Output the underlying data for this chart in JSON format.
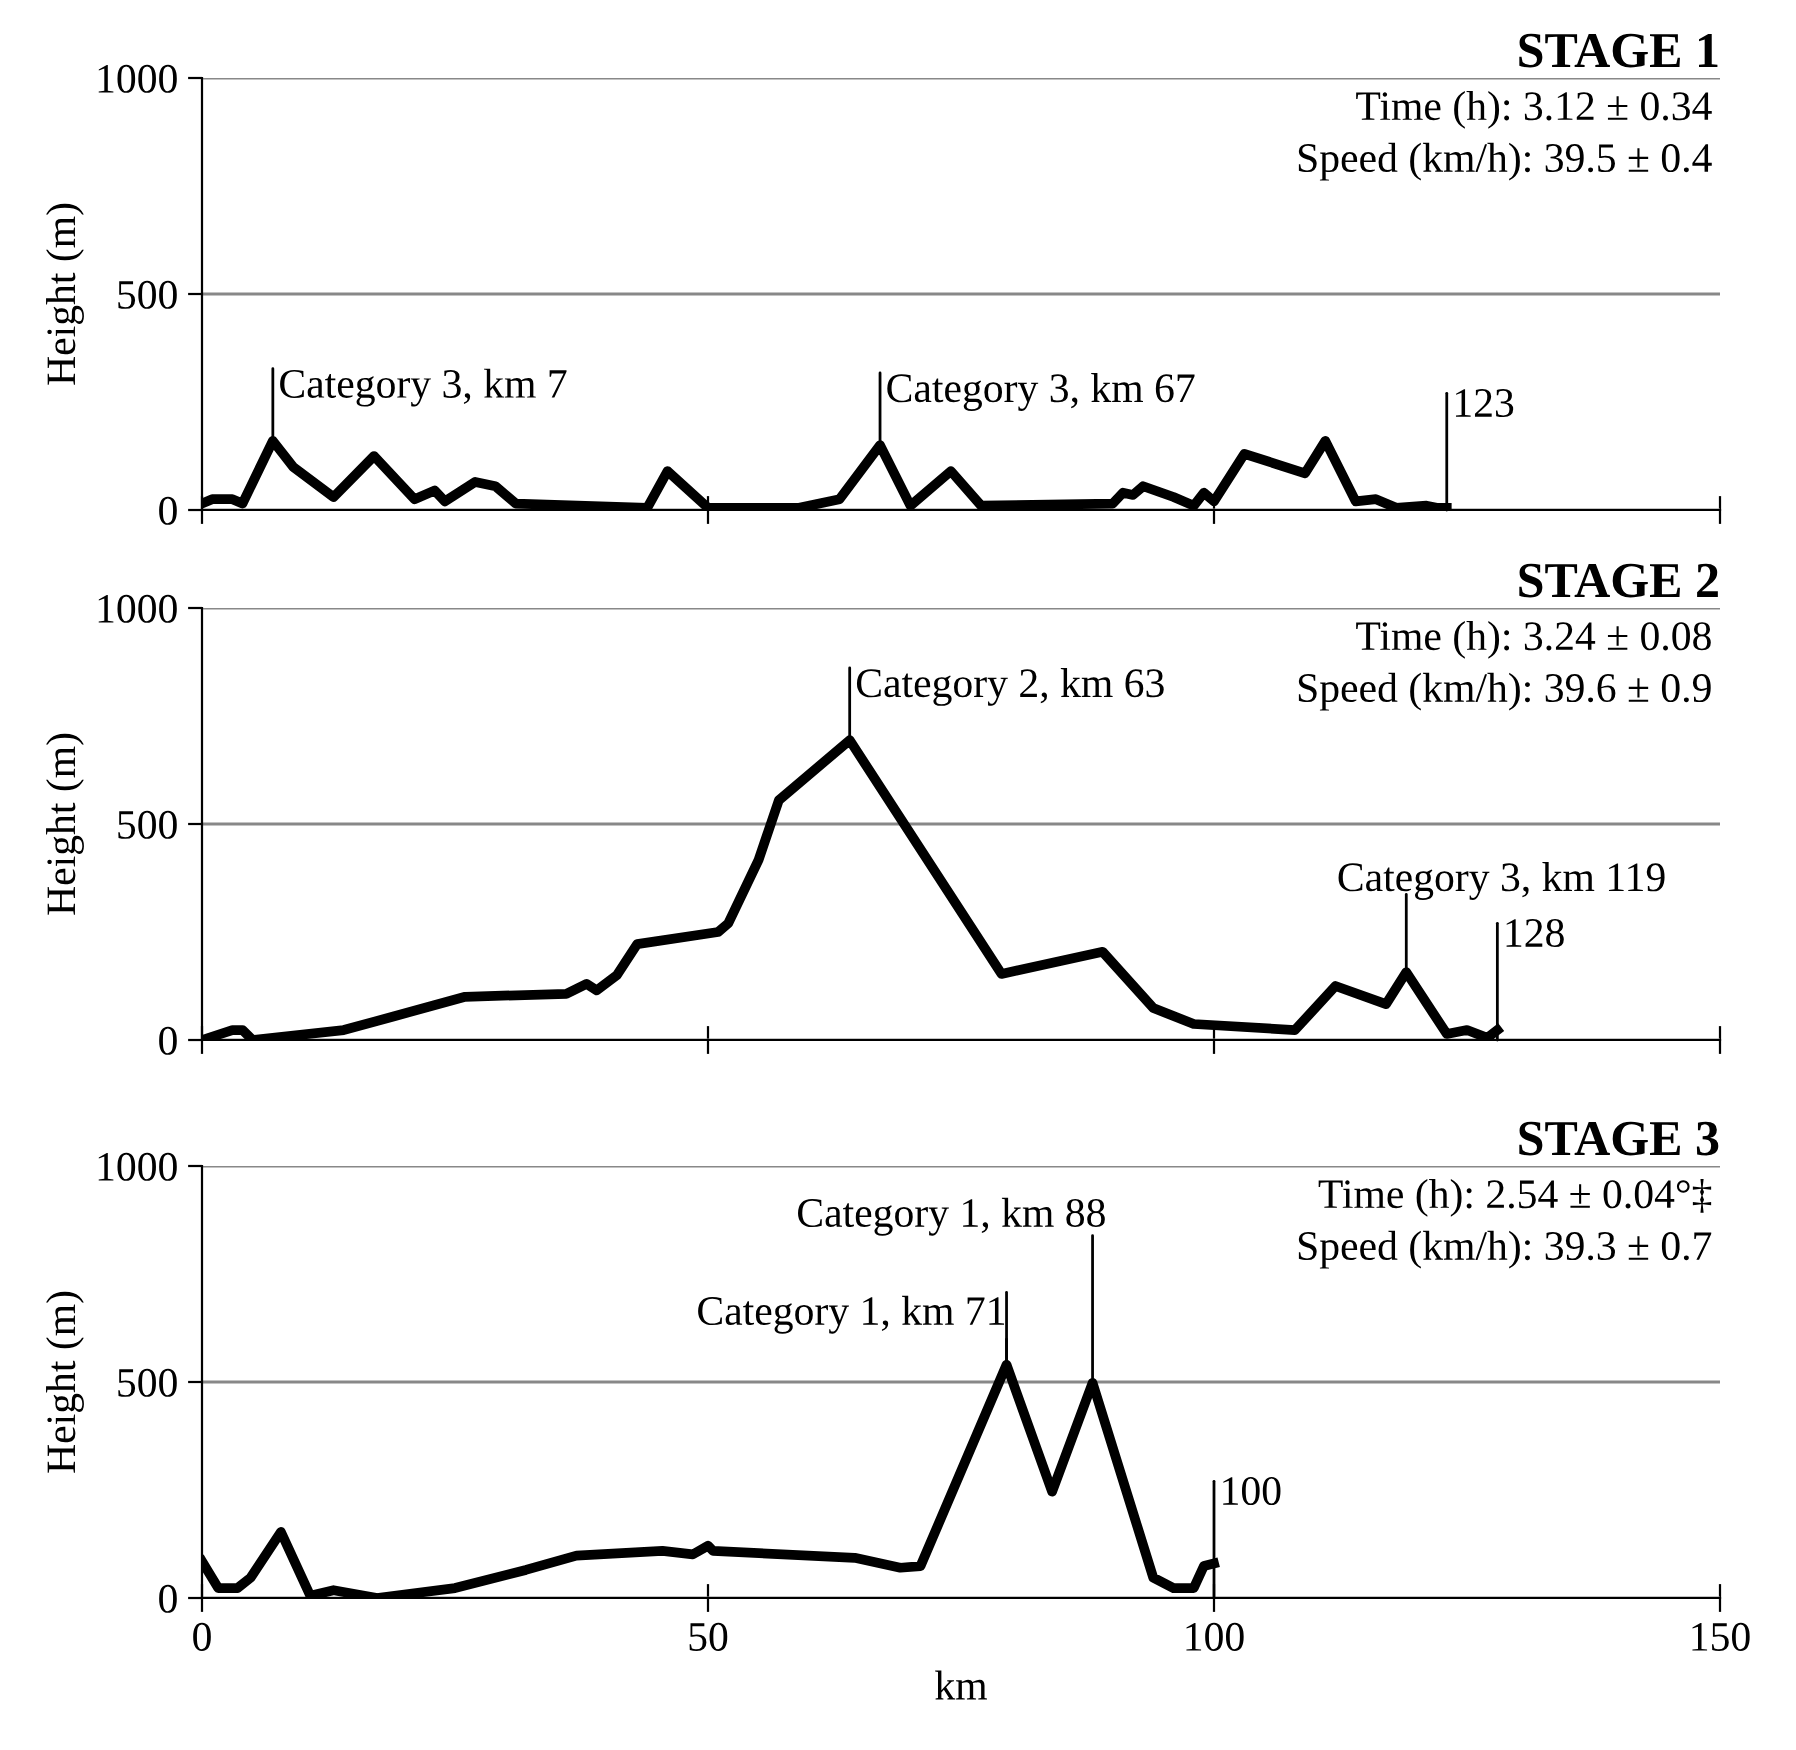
{
  "chart_data": [
    {
      "type": "line",
      "title": "STAGE 1",
      "ylabel": "Height (m)",
      "xlim": [
        0,
        150
      ],
      "xticks": [
        0,
        50,
        100,
        150
      ],
      "ylim": [
        0,
        1000
      ],
      "yticks": [
        0,
        500,
        1000
      ],
      "grid": "y",
      "tick_labels": "y",
      "line_style": "solid",
      "series": [
        {
          "color": "#000000",
          "x": [
            0,
            1,
            3,
            4,
            7,
            9,
            13,
            17,
            21,
            23,
            24,
            27,
            29,
            31,
            44,
            46,
            50,
            59,
            63,
            67,
            70,
            74,
            77,
            90,
            91,
            92,
            93,
            96,
            98,
            99,
            100,
            103,
            109,
            111,
            114,
            116,
            118,
            121,
            122,
            123
          ],
          "values": [
            15,
            25,
            25,
            15,
            160,
            100,
            30,
            125,
            25,
            45,
            20,
            65,
            55,
            15,
            5,
            90,
            5,
            5,
            25,
            150,
            10,
            90,
            10,
            15,
            40,
            35,
            55,
            30,
            10,
            40,
            20,
            130,
            85,
            160,
            20,
            25,
            5,
            10,
            5,
            5
          ]
        }
      ],
      "annotations": [
        "Time (h): 3.12 ± 0.34",
        "Speed (km/h): 39.5 ± 0.4",
        {
          "text": "Category 3, km 7",
          "x": 7,
          "y": 160
        },
        {
          "text": "Category 3, km 67",
          "x": 67,
          "y": 150
        },
        {
          "text": "123",
          "x": 123,
          "y": 5
        }
      ]
    },
    {
      "type": "line",
      "title": "STAGE 2",
      "ylabel": "Height (m)",
      "xlim": [
        0,
        150
      ],
      "xticks": [
        0,
        50,
        100,
        150
      ],
      "ylim": [
        0,
        1000
      ],
      "yticks": [
        0,
        500,
        1000
      ],
      "grid": "y",
      "tick_labels": "y",
      "line_style": "solid",
      "series": [
        {
          "color": "#000000",
          "x": [
            0,
            3,
            4,
            5,
            14,
            19,
            26,
            36,
            38,
            39,
            41,
            43,
            51,
            52,
            55,
            57,
            64,
            79,
            89,
            94,
            98,
            108,
            112,
            117,
            119,
            123,
            125,
            127,
            128
          ],
          "values": [
            0,
            23,
            23,
            0,
            23,
            55,
            100,
            107,
            130,
            115,
            150,
            222,
            250,
            270,
            417,
            555,
            694,
            153,
            204,
            74,
            37,
            23,
            125,
            83,
            157,
            14,
            23,
            5,
            23
          ]
        }
      ],
      "annotations": [
        "Time (h): 3.24 ± 0.08",
        "Speed (km/h): 39.6 ± 0.9",
        {
          "text": "Category 2, km 63",
          "x": 64,
          "y": 694
        },
        {
          "text": "Category 3, km 119",
          "x": 119,
          "y": 157
        },
        {
          "text": "128",
          "x": 128,
          "y": 23
        }
      ]
    },
    {
      "type": "line",
      "title": "STAGE 3",
      "xlabel": "km",
      "ylabel": "Height (m)",
      "xlim": [
        0,
        150
      ],
      "xticks": [
        0,
        50,
        100,
        150
      ],
      "ylim": [
        0,
        1000
      ],
      "yticks": [
        0,
        500,
        1000
      ],
      "grid": "y",
      "line_style": "solid",
      "series": [
        {
          "color": "#000000",
          "x": [
            0,
            1.6,
            3.5,
            4.8,
            7.8,
            10.7,
            13,
            17.3,
            25,
            32,
            37,
            45.5,
            48.5,
            50,
            50.5,
            64.5,
            69,
            71,
            79.5,
            84,
            88,
            94,
            96,
            98,
            99,
            100
          ],
          "values": [
            85,
            23,
            23,
            47,
            153,
            5,
            18,
            0,
            23,
            65,
            98,
            109,
            101,
            121,
            109,
            93,
            70,
            74,
            540,
            246,
            498,
            47,
            23,
            23,
            74,
            80
          ]
        }
      ],
      "annotations": [
        "Time (h): 2.54 ± 0.04°‡",
        "Speed (km/h): 39.3 ± 0.7",
        {
          "text": "Category 1, km 71",
          "x": 79.5,
          "y": 540
        },
        {
          "text": "Category 1, km 88",
          "x": 88,
          "y": 498
        },
        {
          "text": "100",
          "x": 100,
          "y": 80
        }
      ]
    }
  ]
}
